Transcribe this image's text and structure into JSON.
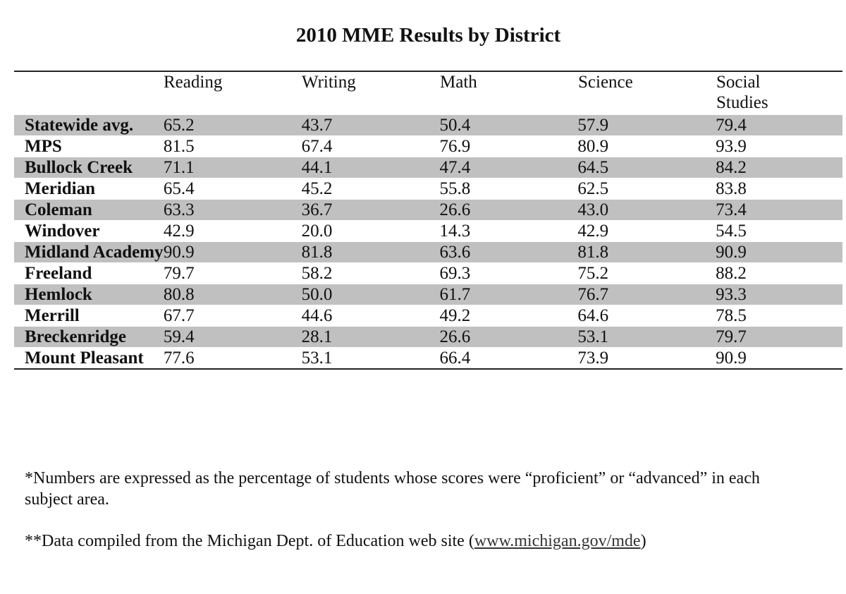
{
  "title": "2010 MME Results by District",
  "table": {
    "columns": [
      "Reading",
      "Writing",
      "Math",
      "Science",
      "Social Studies"
    ],
    "rows": [
      {
        "district": "Statewide avg.",
        "values": [
          "65.2",
          "43.7",
          "50.4",
          "57.9",
          "79.4"
        ],
        "shaded": true
      },
      {
        "district": "MPS",
        "values": [
          "81.5",
          "67.4",
          "76.9",
          "80.9",
          "93.9"
        ],
        "shaded": false
      },
      {
        "district": "Bullock Creek",
        "values": [
          "71.1",
          "44.1",
          "47.4",
          "64.5",
          "84.2"
        ],
        "shaded": true
      },
      {
        "district": "Meridian",
        "values": [
          "65.4",
          "45.2",
          "55.8",
          "62.5",
          "83.8"
        ],
        "shaded": false
      },
      {
        "district": "Coleman",
        "values": [
          "63.3",
          "36.7",
          "26.6",
          "43.0",
          "73.4"
        ],
        "shaded": true
      },
      {
        "district": "Windover",
        "values": [
          "42.9",
          "20.0",
          "14.3",
          "42.9",
          "54.5"
        ],
        "shaded": false
      },
      {
        "district": "Midland Academy",
        "values": [
          "90.9",
          "81.8",
          "63.6",
          "81.8",
          "90.9"
        ],
        "shaded": true
      },
      {
        "district": "Freeland",
        "values": [
          "79.7",
          "58.2",
          "69.3",
          "75.2",
          "88.2"
        ],
        "shaded": false
      },
      {
        "district": "Hemlock",
        "values": [
          "80.8",
          "50.0",
          "61.7",
          "76.7",
          "93.3"
        ],
        "shaded": true
      },
      {
        "district": "Merrill",
        "values": [
          "67.7",
          "44.6",
          "49.2",
          "64.6",
          "78.5"
        ],
        "shaded": false
      },
      {
        "district": "Breckenridge",
        "values": [
          "59.4",
          "28.1",
          "26.6",
          "53.1",
          "79.7"
        ],
        "shaded": true
      },
      {
        "district": "Mount Pleasant",
        "values": [
          "77.6",
          "53.1",
          "66.4",
          "73.9",
          "90.9"
        ],
        "shaded": false
      }
    ]
  },
  "notes": {
    "note1": "*Numbers are expressed as the percentage of students whose scores were “proficient” or “advanced” in each subject area.",
    "note2_prefix": "**Data compiled from the Michigan Dept. of Education web site (",
    "note2_link": "www.michigan.gov/mde",
    "note2_suffix": ")"
  },
  "colors": {
    "shade": "#c0c0c0",
    "rule": "#222222"
  }
}
